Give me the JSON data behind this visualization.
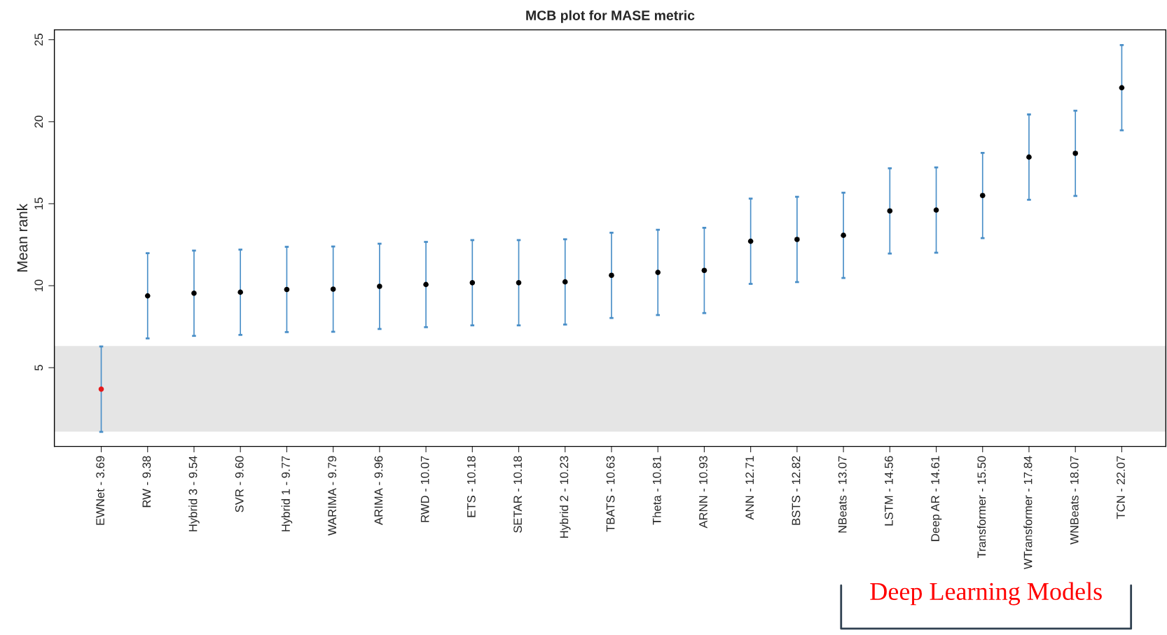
{
  "chart_data": {
    "type": "scatter",
    "title": "MCB plot for MASE metric",
    "ylabel": "Mean rank",
    "categories": [
      "EWNet - 3.69",
      "RW - 9.38",
      "Hybrid 3 - 9.54",
      "SVR - 9.60",
      "Hybrid 1 - 9.77",
      "WARIMA - 9.79",
      "ARIMA - 9.96",
      "RWD - 10.07",
      "ETS - 10.18",
      "SETAR - 10.18",
      "Hybrid 2 - 10.23",
      "TBATS - 10.63",
      "Theta - 10.81",
      "ARNN - 10.93",
      "ANN - 12.71",
      "BSTS - 12.82",
      "NBeats - 13.07",
      "LSTM - 14.56",
      "Deep AR - 14.61",
      "Transformer - 15.50",
      "WTransformer - 17.84",
      "WNBeats - 18.07",
      "TCN - 22.07"
    ],
    "values": [
      3.69,
      9.38,
      9.54,
      9.6,
      9.77,
      9.79,
      9.96,
      10.07,
      10.18,
      10.18,
      10.23,
      10.63,
      10.81,
      10.93,
      12.71,
      12.82,
      13.07,
      14.56,
      14.61,
      15.5,
      17.84,
      18.07,
      22.07
    ],
    "errors": [
      2.6,
      2.6,
      2.6,
      2.6,
      2.6,
      2.6,
      2.6,
      2.6,
      2.6,
      2.6,
      2.6,
      2.6,
      2.6,
      2.6,
      2.6,
      2.6,
      2.6,
      2.6,
      2.6,
      2.6,
      2.6,
      2.6,
      2.6
    ],
    "colors": [
      "#e41a1c",
      "#000000",
      "#000000",
      "#000000",
      "#000000",
      "#000000",
      "#000000",
      "#000000",
      "#000000",
      "#000000",
      "#000000",
      "#000000",
      "#000000",
      "#000000",
      "#000000",
      "#000000",
      "#000000",
      "#000000",
      "#000000",
      "#000000",
      "#000000",
      "#000000",
      "#000000"
    ],
    "color": "#4a8fc8",
    "marker": "circle",
    "ylim": [
      0.2,
      25.6
    ],
    "yticks": [
      5,
      10,
      15,
      20,
      25
    ],
    "bands": [
      {
        "axis": "y",
        "from": 1.1,
        "to": 6.32,
        "color": "#e5e5e5"
      }
    ],
    "annotations": [
      "Deep Learning Models"
    ],
    "grid": false,
    "legend": false
  }
}
